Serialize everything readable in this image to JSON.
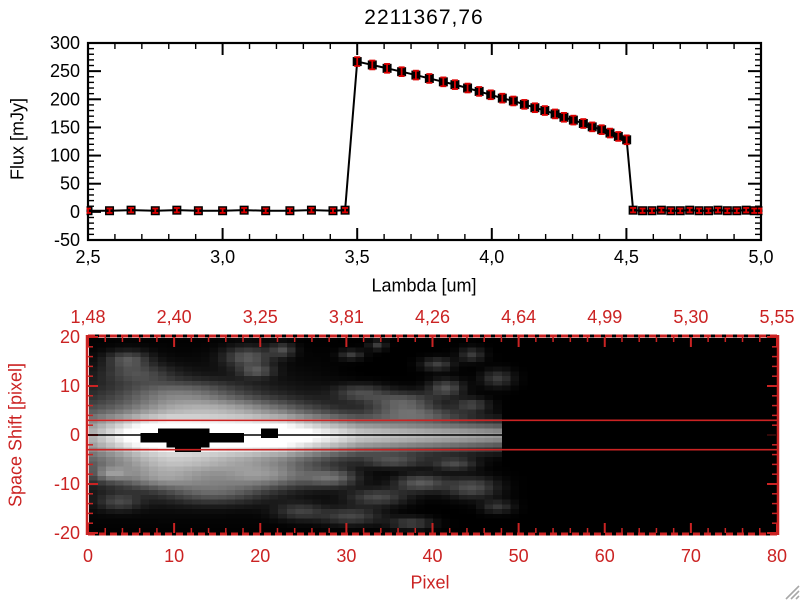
{
  "title": "2211367,76",
  "colors": {
    "axis_black": "#000000",
    "axis_red": "#cb2323",
    "error_red": "#dd0000",
    "grip_gray": "#a8a8a8"
  },
  "icons": {
    "resize_grip": "diagonal-lines"
  },
  "chart_data": [
    {
      "type": "line",
      "title": "2211367,76",
      "xlabel": "Lambda [um]",
      "ylabel": "Flux [mJy]",
      "xlim": [
        2.5,
        5.0
      ],
      "ylim": [
        -50,
        300
      ],
      "x_major_ticks": [
        2.5,
        3.0,
        3.5,
        4.0,
        4.5,
        5.0
      ],
      "x_tick_labels": [
        "2,5",
        "3,0",
        "3,5",
        "4,0",
        "4,5",
        "5,0"
      ],
      "x_minor_step": 0.1,
      "y_major_ticks": [
        -50,
        0,
        50,
        100,
        150,
        200,
        250,
        300
      ],
      "y_tick_labels": [
        "-50",
        "0",
        "50",
        "100",
        "150",
        "200",
        "250",
        "300"
      ],
      "y_minor_step": 10,
      "marker": "black-square-with-red-error-bar",
      "grid": false,
      "x": [
        2.5,
        2.58,
        2.66,
        2.75,
        2.83,
        2.91,
        3.0,
        3.08,
        3.16,
        3.25,
        3.33,
        3.41,
        3.455,
        3.5,
        3.556,
        3.611,
        3.665,
        3.718,
        3.768,
        3.82,
        3.863,
        3.91,
        3.953,
        3.996,
        4.039,
        4.08,
        4.121,
        4.16,
        4.197,
        4.235,
        4.268,
        4.303,
        4.34,
        4.373,
        4.408,
        4.439,
        4.47,
        4.501,
        4.525,
        4.56,
        4.595,
        4.63,
        4.665,
        4.7,
        4.735,
        4.77,
        4.805,
        4.84,
        4.875,
        4.91,
        4.945,
        4.975,
        5.0
      ],
      "y": [
        2,
        2,
        3,
        2,
        3,
        2,
        2,
        3,
        2,
        2,
        3,
        2,
        3,
        267,
        261,
        255,
        249,
        243,
        237,
        231,
        226,
        220,
        214,
        208,
        202,
        197,
        191,
        185,
        180,
        174,
        168,
        163,
        157,
        151,
        146,
        140,
        134,
        128,
        3,
        2,
        2,
        3,
        2,
        2,
        3,
        2,
        2,
        3,
        2,
        2,
        3,
        2,
        2
      ],
      "yerr": [
        4,
        4,
        4,
        4,
        4,
        4,
        4,
        4,
        4,
        4,
        4,
        4,
        4,
        8,
        8,
        8,
        8,
        8,
        8,
        8,
        8,
        8,
        8,
        8,
        8,
        8,
        8,
        8,
        8,
        8,
        8,
        8,
        8,
        8,
        8,
        8,
        8,
        8,
        4,
        4,
        4,
        4,
        4,
        4,
        4,
        4,
        4,
        4,
        4,
        4,
        4,
        4,
        4
      ]
    },
    {
      "type": "heatmap",
      "xlabel": "Pixel",
      "ylabel": "Space Shift [pixel]",
      "xlim": [
        0,
        80
      ],
      "ylim": [
        -20,
        20
      ],
      "x_major_ticks": [
        0,
        10,
        20,
        30,
        40,
        50,
        60,
        70,
        80
      ],
      "x_tick_labels": [
        "0",
        "10",
        "20",
        "30",
        "40",
        "50",
        "60",
        "70",
        "80"
      ],
      "x_minor_step": 2,
      "y_major_ticks": [
        -20,
        -10,
        0,
        10,
        20
      ],
      "y_tick_labels": [
        "-20",
        "-10",
        "0",
        "10",
        "20"
      ],
      "y_minor_step": 2,
      "top_axis_labels": [
        "1,48",
        "2,40",
        "3,25",
        "3,81",
        "4,26",
        "4,64",
        "4,99",
        "5,30",
        "5,55"
      ],
      "aperture_lines_y": [
        3,
        -3
      ],
      "trace_center_y": 0,
      "image": {
        "cols": 80,
        "rows": 41,
        "band": {
          "amp_ctrl": [
            [
              0,
              115
            ],
            [
              3,
              170
            ],
            [
              6,
              225
            ],
            [
              9,
              255
            ],
            [
              22,
              255
            ],
            [
              26,
              218
            ],
            [
              32,
              198
            ],
            [
              38,
              180
            ],
            [
              43,
              166
            ],
            [
              47,
              152
            ],
            [
              48,
              0
            ]
          ],
          "sigma_ctrl": [
            [
              0,
              3.4
            ],
            [
              22,
              3.2
            ],
            [
              47,
              2.0
            ]
          ],
          "halo_amp_ctrl": [
            [
              0,
              65
            ],
            [
              8,
              80
            ],
            [
              18,
              65
            ],
            [
              26,
              35
            ],
            [
              31,
              0
            ]
          ],
          "halo_sigma": 7.5,
          "x_end": 47
        },
        "mask_rects": [
          [
            6,
            15,
            -1,
            0
          ],
          [
            8,
            13,
            1,
            1
          ],
          [
            9,
            13,
            -2,
            -2
          ],
          [
            15,
            17,
            -1,
            0
          ],
          [
            20,
            21,
            0,
            1
          ],
          [
            10,
            12,
            -3,
            -3
          ]
        ],
        "blobs": [
          [
            4,
            16,
            2.5,
            1.8,
            80
          ],
          [
            18,
            16.5,
            2.8,
            2.2,
            85
          ],
          [
            22,
            18,
            1.4,
            1.4,
            70
          ],
          [
            19,
            13.5,
            2,
            1.3,
            70
          ],
          [
            30,
            17,
            1.4,
            1,
            60
          ],
          [
            33,
            19,
            1,
            1,
            60
          ],
          [
            36,
            7,
            4,
            2.2,
            95
          ],
          [
            31,
            9,
            3,
            1.8,
            70
          ],
          [
            41,
            10,
            2,
            1.8,
            80
          ],
          [
            44,
            6.5,
            2,
            1.4,
            65
          ],
          [
            47,
            12,
            1.8,
            1.8,
            60
          ],
          [
            40,
            15,
            1.8,
            1.3,
            65
          ],
          [
            44,
            17,
            1.4,
            1.4,
            60
          ],
          [
            38,
            4.5,
            5,
            1.4,
            60
          ],
          [
            10,
            9,
            7,
            2.5,
            75
          ],
          [
            5,
            13,
            4,
            2,
            60
          ],
          [
            14,
            6,
            8,
            2,
            60
          ],
          [
            8,
            -9,
            6,
            2.2,
            100
          ],
          [
            20,
            -8.5,
            6,
            2.6,
            105
          ],
          [
            14,
            -12,
            6,
            2.5,
            75
          ],
          [
            28,
            -9,
            3,
            1.8,
            85
          ],
          [
            33,
            -13,
            3.5,
            1.8,
            75
          ],
          [
            38,
            -10,
            3,
            1.8,
            90
          ],
          [
            44,
            -11,
            3,
            2.2,
            80
          ],
          [
            30,
            -17,
            3.5,
            1.8,
            70
          ],
          [
            37,
            -18.5,
            2.5,
            1.3,
            65
          ],
          [
            24,
            -16,
            2.8,
            1.8,
            60
          ],
          [
            3,
            -14,
            2.5,
            1.8,
            60
          ],
          [
            47,
            -15,
            1.8,
            1.3,
            55
          ],
          [
            42,
            -6,
            2.5,
            1.3,
            70
          ],
          [
            35,
            -5.5,
            3.5,
            1.3,
            65
          ],
          [
            10,
            -6,
            8,
            2,
            70
          ],
          [
            2,
            -8,
            2,
            1.5,
            70
          ]
        ]
      }
    }
  ]
}
